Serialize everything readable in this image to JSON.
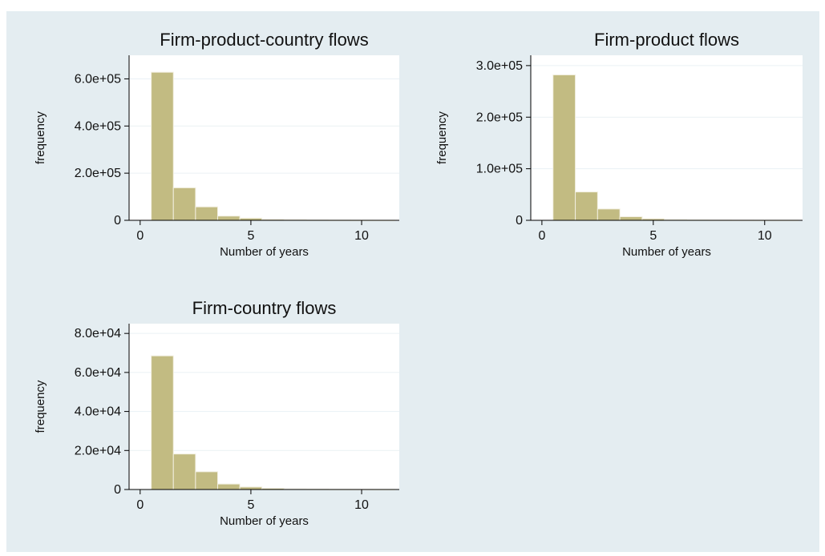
{
  "colors": {
    "bar": "#c2bb82",
    "panel_background": "#e4edf1",
    "plot_background": "#ffffff"
  },
  "chart_data": [
    {
      "type": "bar",
      "title": "Firm-product-country flows",
      "xlabel": "Number of years",
      "ylabel": "frequency",
      "xlim": [
        -0.5,
        11.7
      ],
      "ylim": [
        0,
        700000
      ],
      "x_ticks": [
        {
          "value": 0,
          "label": "0"
        },
        {
          "value": 5,
          "label": "5"
        },
        {
          "value": 10,
          "label": "10"
        }
      ],
      "y_ticks": [
        {
          "value": 0,
          "label": "0"
        },
        {
          "value": 200000,
          "label": "2.0e+05"
        },
        {
          "value": 400000,
          "label": "4.0e+05"
        },
        {
          "value": 600000,
          "label": "6.0e+05"
        }
      ],
      "bin_width": 1,
      "categories": [
        1,
        2,
        3,
        4,
        5,
        6,
        7,
        8,
        9,
        10,
        11
      ],
      "values": [
        628000,
        138000,
        57000,
        18000,
        9000,
        4000,
        3000,
        1500,
        800,
        500,
        300
      ]
    },
    {
      "type": "bar",
      "title": "Firm-product flows",
      "xlabel": "Number of years",
      "ylabel": "frequency",
      "xlim": [
        -0.5,
        11.7
      ],
      "ylim": [
        0,
        320000
      ],
      "x_ticks": [
        {
          "value": 0,
          "label": "0"
        },
        {
          "value": 5,
          "label": "5"
        },
        {
          "value": 10,
          "label": "10"
        }
      ],
      "y_ticks": [
        {
          "value": 0,
          "label": "0"
        },
        {
          "value": 100000,
          "label": "1.0e+05"
        },
        {
          "value": 200000,
          "label": "2.0e+05"
        },
        {
          "value": 300000,
          "label": "3.0e+05"
        }
      ],
      "bin_width": 1,
      "categories": [
        1,
        2,
        3,
        4,
        5,
        6,
        7,
        8,
        9,
        10,
        11
      ],
      "values": [
        282000,
        55000,
        22000,
        7000,
        3000,
        1500,
        800,
        500,
        300,
        200,
        150
      ]
    },
    {
      "type": "bar",
      "title": "Firm-country flows",
      "xlabel": "Number of years",
      "ylabel": "frequency",
      "xlim": [
        -0.5,
        11.7
      ],
      "ylim": [
        0,
        85000
      ],
      "x_ticks": [
        {
          "value": 0,
          "label": "0"
        },
        {
          "value": 5,
          "label": "5"
        },
        {
          "value": 10,
          "label": "10"
        }
      ],
      "y_ticks": [
        {
          "value": 0,
          "label": "0"
        },
        {
          "value": 20000,
          "label": "2.0e+04"
        },
        {
          "value": 40000,
          "label": "4.0e+04"
        },
        {
          "value": 60000,
          "label": "6.0e+04"
        },
        {
          "value": 80000,
          "label": "8.0e+04"
        }
      ],
      "bin_width": 1,
      "categories": [
        1,
        2,
        3,
        4,
        5,
        6,
        7,
        8,
        9,
        10,
        11
      ],
      "values": [
        68500,
        18200,
        9100,
        2800,
        1300,
        600,
        300,
        200,
        100,
        80,
        50
      ]
    }
  ]
}
